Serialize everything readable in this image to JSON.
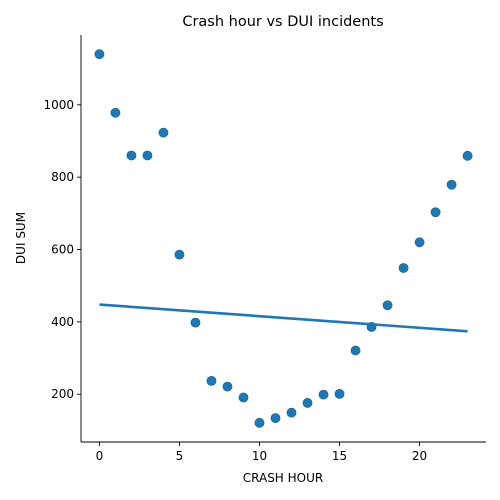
{
  "chart_data": {
    "type": "scatter",
    "title": "Crash hour vs DUI incidents",
    "xlabel": "CRASH HOUR",
    "ylabel": "DUI SUM",
    "xlim": [
      -1.15,
      24.15
    ],
    "ylim": [
      68,
      1193
    ],
    "xticks": [
      0,
      5,
      10,
      15,
      20
    ],
    "yticks": [
      200,
      400,
      600,
      800,
      1000
    ],
    "grid": false,
    "legend": "none",
    "point_color": "#1f77b4",
    "line_color": "#1f77b4",
    "points": [
      {
        "x": 0,
        "y": 1140
      },
      {
        "x": 1,
        "y": 978
      },
      {
        "x": 2,
        "y": 860
      },
      {
        "x": 3,
        "y": 860
      },
      {
        "x": 4,
        "y": 923
      },
      {
        "x": 5,
        "y": 586
      },
      {
        "x": 6,
        "y": 398
      },
      {
        "x": 7,
        "y": 237
      },
      {
        "x": 8,
        "y": 221
      },
      {
        "x": 9,
        "y": 191
      },
      {
        "x": 10,
        "y": 121
      },
      {
        "x": 11,
        "y": 134
      },
      {
        "x": 12,
        "y": 149
      },
      {
        "x": 13,
        "y": 176
      },
      {
        "x": 14,
        "y": 199
      },
      {
        "x": 15,
        "y": 201
      },
      {
        "x": 16,
        "y": 321
      },
      {
        "x": 17,
        "y": 386
      },
      {
        "x": 18,
        "y": 446
      },
      {
        "x": 19,
        "y": 549
      },
      {
        "x": 20,
        "y": 620
      },
      {
        "x": 21,
        "y": 703
      },
      {
        "x": 22,
        "y": 779
      },
      {
        "x": 23,
        "y": 859
      }
    ],
    "regression_line": {
      "x": [
        0,
        23
      ],
      "y": [
        448,
        374
      ]
    }
  }
}
